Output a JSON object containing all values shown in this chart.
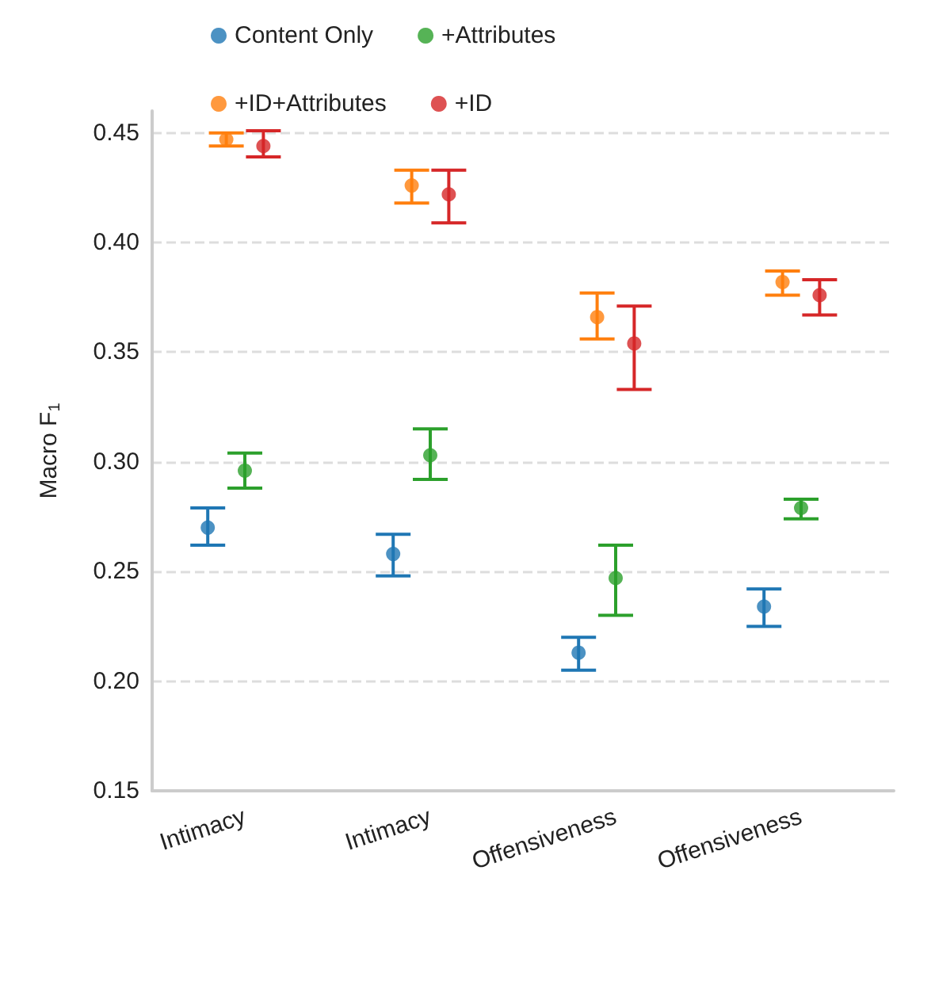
{
  "chart_data": {
    "type": "scatter",
    "ylabel": "Macro F$_{1}$",
    "categories": [
      "Intimacy",
      "Intimacy",
      "Offensiveness",
      "Offensiveness"
    ],
    "series": [
      {
        "name": "Content Only",
        "color": "#1f77b4",
        "values": [
          0.27,
          0.258,
          0.213,
          0.234
        ],
        "errors": [
          [
            0.262,
            0.279
          ],
          [
            0.248,
            0.267
          ],
          [
            0.205,
            0.22
          ],
          [
            0.225,
            0.242
          ]
        ]
      },
      {
        "name": "+ID+Attributes",
        "color": "#ff7f0e",
        "values": [
          0.447,
          0.426,
          0.366,
          0.382
        ],
        "errors": [
          [
            0.444,
            0.45
          ],
          [
            0.418,
            0.433
          ],
          [
            0.356,
            0.377
          ],
          [
            0.376,
            0.387
          ]
        ]
      },
      {
        "name": "+Attributes",
        "color": "#2ca02c",
        "values": [
          0.296,
          0.303,
          0.247,
          0.279
        ],
        "errors": [
          [
            0.288,
            0.304
          ],
          [
            0.292,
            0.315
          ],
          [
            0.23,
            0.262
          ],
          [
            0.274,
            0.283
          ]
        ]
      },
      {
        "name": "+ID",
        "color": "#d62728",
        "values": [
          0.444,
          0.422,
          0.354,
          0.376
        ],
        "errors": [
          [
            0.439,
            0.451
          ],
          [
            0.409,
            0.433
          ],
          [
            0.333,
            0.371
          ],
          [
            0.367,
            0.383
          ]
        ]
      }
    ],
    "ylim": [
      0.15,
      0.46
    ],
    "yticks": [
      {
        "value": 0.15,
        "label": "0.15"
      },
      {
        "value": 0.2,
        "label": "0.20"
      },
      {
        "value": 0.25,
        "label": "0.25"
      },
      {
        "value": 0.3,
        "label": "0.30"
      },
      {
        "value": 0.35,
        "label": "0.35"
      },
      {
        "value": 0.4,
        "label": "0.40"
      },
      {
        "value": 0.45,
        "label": "0.45"
      }
    ],
    "grid": "y",
    "legend": "top",
    "marker": "circle"
  }
}
